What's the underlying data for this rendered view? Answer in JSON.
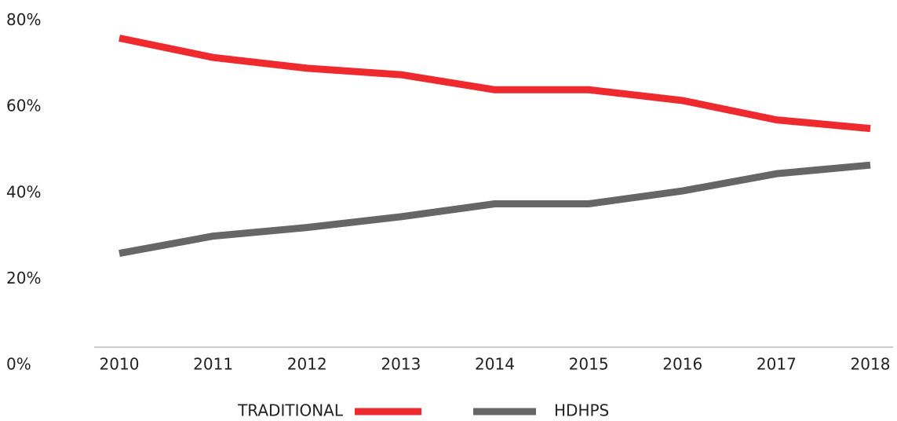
{
  "chart_data": {
    "type": "line",
    "categories": [
      "2010",
      "2011",
      "2012",
      "2013",
      "2014",
      "2015",
      "2016",
      "2017",
      "2018"
    ],
    "series": [
      {
        "name": "TRADITIONAL",
        "color": "#ee2a2e",
        "values": [
          76,
          71.5,
          69,
          67.5,
          64,
          64,
          61.5,
          57,
          55
        ]
      },
      {
        "name": "HDHPS",
        "color": "#666666",
        "values": [
          26,
          30,
          32,
          34.5,
          37.5,
          37.5,
          40.5,
          44.5,
          46.5
        ]
      }
    ],
    "ylim": [
      0,
      80
    ],
    "yticks": [
      {
        "value": 0,
        "label": "0%"
      },
      {
        "value": 20,
        "label": "20%"
      },
      {
        "value": 40,
        "label": "40%"
      },
      {
        "value": 60,
        "label": "60%"
      },
      {
        "value": 80,
        "label": "80%"
      }
    ],
    "grid": false,
    "legend": "bottom"
  }
}
